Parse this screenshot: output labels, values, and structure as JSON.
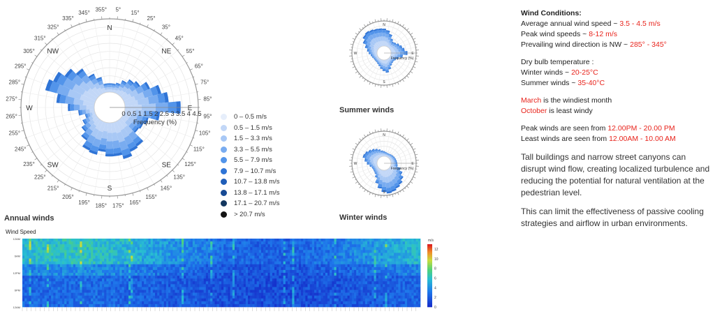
{
  "captions": {
    "annual": "Annual winds",
    "summer": "Summer winds",
    "winter": "Winter winds",
    "heatmap_title": "Wind Speed"
  },
  "notes": {
    "title": "Wind Conditions:",
    "avg_label": "Average annual wind speed ~ ",
    "avg_value": "3.5 - 4.5 m/s",
    "peak_label": "Peak wind speeds ~ ",
    "peak_value": "8-12 m/s",
    "dir_label": "Prevailing wind direction is NW ~ ",
    "dir_value": "285° - 345°",
    "dry_bulb": "Dry bulb temperature :",
    "winter_label": "Winter winds ~ ",
    "winter_value": "20-25°C",
    "summer_label": "Summer winds ~ ",
    "summer_value": "35-40°C",
    "windiest_month": "March",
    "windiest_suffix": " is the windiest month",
    "least_month": "October",
    "least_suffix": " is least windy",
    "peak_time_label": "Peak winds are seen from ",
    "peak_time_value": "12.00PM - 20.00 PM",
    "least_time_label": "Least winds are seen from ",
    "least_time_value": "12.00AM - 10.00 AM",
    "para1": "Tall buildings and narrow street canyons can disrupt wind flow, creating localized turbulence and reducing the potential for natural ventilation at the pedestrian level.",
    "para2": "This can limit the effectiveness of passive cooling strategies and airflow in urban environments."
  },
  "chart_data": [
    {
      "type": "wind-rose",
      "radial_axis_label": "Frequency (%)",
      "radial_ticks": [
        "0",
        "0.5",
        "1",
        "1.5",
        "2",
        "2.5",
        "3",
        "3.5",
        "4",
        "4.5"
      ],
      "radial_max": 5,
      "compass_labels": [
        "N",
        "NE",
        "E",
        "SE",
        "S",
        "SW",
        "W",
        "NW"
      ],
      "degree_labels": [
        "5°",
        "15°",
        "25°",
        "35°",
        "45°",
        "55°",
        "65°",
        "75°",
        "85°",
        "95°",
        "105°",
        "115°",
        "125°",
        "135°",
        "145°",
        "155°",
        "165°",
        "175°",
        "185°",
        "195°",
        "205°",
        "215°",
        "225°",
        "235°",
        "245°",
        "255°",
        "265°",
        "275°",
        "285°",
        "295°",
        "305°",
        "315°",
        "325°",
        "335°",
        "345°",
        "355°"
      ],
      "legend": [
        {
          "label": "0 – 0.5 m/s",
          "color": "#e6eefb"
        },
        {
          "label": "0.5 – 1.5 m/s",
          "color": "#c2d7f7"
        },
        {
          "label": "1.5 – 3.3 m/s",
          "color": "#a8c8f5"
        },
        {
          "label": "3.3 – 5.5 m/s",
          "color": "#79acf0"
        },
        {
          "label": "5.5 – 7.9 m/s",
          "color": "#5294ea"
        },
        {
          "label": "7.9 – 10.7 m/s",
          "color": "#2f74d6"
        },
        {
          "label": "10.7 – 13.8 m/s",
          "color": "#1f5db8"
        },
        {
          "label": "13.8 – 17.1 m/s",
          "color": "#174a94"
        },
        {
          "label": "17.1 – 20.7 m/s",
          "color": "#12365e"
        },
        {
          "label": "> 20.7 m/s",
          "color": "#141414"
        }
      ],
      "directions_deg": [
        0,
        10,
        20,
        30,
        40,
        50,
        60,
        70,
        80,
        90,
        100,
        110,
        120,
        130,
        140,
        150,
        160,
        170,
        180,
        190,
        200,
        210,
        220,
        230,
        240,
        250,
        260,
        270,
        280,
        290,
        300,
        310,
        320,
        330,
        340,
        350
      ],
      "frequency_pct": [
        0.6,
        0.6,
        0.7,
        1.0,
        1.3,
        1.5,
        2.0,
        2.6,
        3.0,
        3.8,
        2.4,
        1.7,
        1.5,
        1.4,
        2.2,
        2.3,
        2.6,
        2.3,
        2.3,
        2.0,
        2.3,
        2.2,
        1.7,
        1.3,
        1.0,
        0.7,
        1.1,
        1.8,
        2.6,
        3.5,
        3.2,
        2.7,
        2.2,
        1.5,
        1.1,
        0.6
      ]
    },
    {
      "type": "wind-rose",
      "series_name": "Summer winds",
      "radial_axis_label": "Frequency (%)",
      "directions_deg": [
        0,
        10,
        20,
        30,
        40,
        50,
        60,
        70,
        80,
        90,
        100,
        110,
        120,
        130,
        140,
        150,
        160,
        170,
        180,
        190,
        200,
        210,
        220,
        230,
        240,
        250,
        260,
        270,
        280,
        290,
        300,
        310,
        320,
        330,
        340,
        350
      ],
      "frequency_pct": [
        3.8,
        3.5,
        2.8,
        2.0,
        1.6,
        1.8,
        2.2,
        2.6,
        3.0,
        3.6,
        2.6,
        1.8,
        1.4,
        1.2,
        1.3,
        1.6,
        2.2,
        2.8,
        2.4,
        2.0,
        1.5,
        1.2,
        1.0,
        1.0,
        1.0,
        1.2,
        1.4,
        1.8,
        2.2,
        2.8,
        3.6,
        4.2,
        4.4,
        4.2,
        4.0,
        3.9
      ]
    },
    {
      "type": "wind-rose",
      "series_name": "Winter winds",
      "radial_axis_label": "Frequency (%)",
      "directions_deg": [
        0,
        10,
        20,
        30,
        40,
        50,
        60,
        70,
        80,
        90,
        100,
        110,
        120,
        130,
        140,
        150,
        160,
        170,
        180,
        190,
        200,
        210,
        220,
        230,
        240,
        250,
        260,
        270,
        280,
        290,
        300,
        310,
        320,
        330,
        340,
        350
      ],
      "frequency_pct": [
        1.2,
        1.0,
        0.9,
        0.9,
        1.0,
        1.1,
        1.2,
        1.3,
        1.4,
        1.5,
        1.6,
        2.4,
        3.2,
        4.0,
        4.6,
        5.0,
        5.4,
        5.6,
        5.2,
        4.4,
        3.4,
        2.2,
        1.6,
        1.4,
        1.3,
        1.4,
        1.8,
        2.4,
        3.0,
        3.6,
        3.4,
        3.0,
        2.6,
        2.2,
        1.8,
        1.4
      ]
    },
    {
      "type": "heatmap",
      "title": "Wind Speed",
      "colorbar_unit": "m/s",
      "colorbar_ticks": [
        "0",
        "2",
        "4",
        "6",
        "8",
        "10",
        "12"
      ],
      "y_ticks": [
        "12AM",
        "6AM",
        "12PM",
        "6PM",
        "12AM"
      ],
      "color_range": [
        0,
        13
      ]
    }
  ]
}
